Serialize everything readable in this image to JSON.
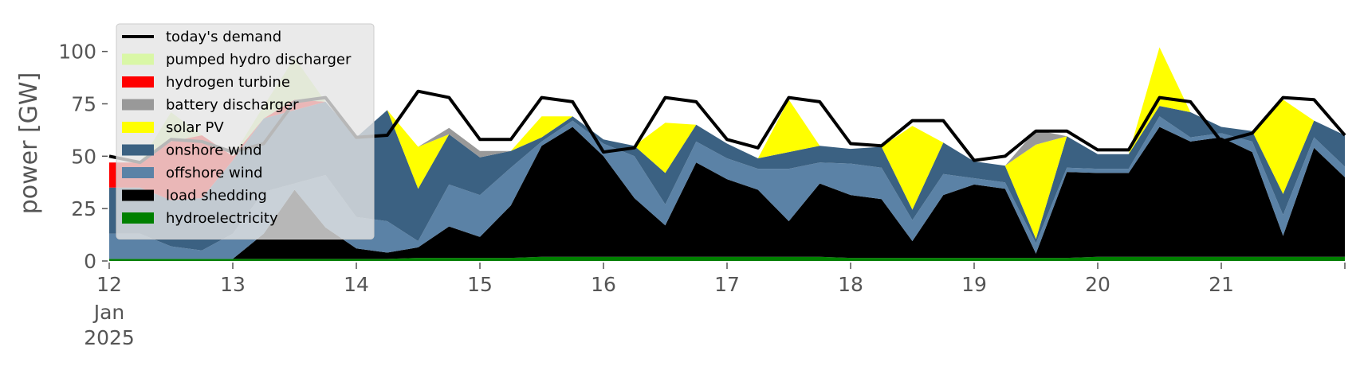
{
  "chart_data": {
    "type": "area",
    "stacked": true,
    "ylabel": "power [GW]",
    "xlabel": "",
    "ylim": [
      0,
      120
    ],
    "yticks": [
      0,
      25,
      50,
      75,
      100
    ],
    "xlim": [
      "2025-01-12T00:00",
      "2025-01-22T00:00"
    ],
    "xtick_labels": [
      "12",
      "13",
      "14",
      "15",
      "16",
      "17",
      "18",
      "19",
      "20",
      "21"
    ],
    "x_date_label": [
      "Jan",
      "2025"
    ],
    "legend_position": "upper-left",
    "legend": [
      {
        "name": "today's demand",
        "kind": "line",
        "color": "#000000"
      },
      {
        "name": "pumped hydro discharger",
        "kind": "patch",
        "color": "#d9f7a6"
      },
      {
        "name": "hydrogen turbine",
        "kind": "patch",
        "color": "#ff0000"
      },
      {
        "name": "battery discharger",
        "kind": "patch",
        "color": "#999999"
      },
      {
        "name": "solar PV",
        "kind": "patch",
        "color": "#ffff00"
      },
      {
        "name": "onshore wind",
        "kind": "patch",
        "color": "#3b6182"
      },
      {
        "name": "offshore wind",
        "kind": "patch",
        "color": "#5b82a6"
      },
      {
        "name": "load shedding",
        "kind": "patch",
        "color": "#000000"
      },
      {
        "name": "hydroelectricity",
        "kind": "patch",
        "color": "#008000"
      }
    ],
    "x": [
      "2025-01-12T00:00",
      "2025-01-12T06:00",
      "2025-01-12T12:00",
      "2025-01-12T18:00",
      "2025-01-13T00:00",
      "2025-01-13T06:00",
      "2025-01-13T12:00",
      "2025-01-13T18:00",
      "2025-01-14T00:00",
      "2025-01-14T06:00",
      "2025-01-14T12:00",
      "2025-01-14T18:00",
      "2025-01-15T00:00",
      "2025-01-15T06:00",
      "2025-01-15T12:00",
      "2025-01-15T18:00",
      "2025-01-16T00:00",
      "2025-01-16T06:00",
      "2025-01-16T12:00",
      "2025-01-16T18:00",
      "2025-01-17T00:00",
      "2025-01-17T06:00",
      "2025-01-17T12:00",
      "2025-01-17T18:00",
      "2025-01-18T00:00",
      "2025-01-18T06:00",
      "2025-01-18T12:00",
      "2025-01-18T18:00",
      "2025-01-19T00:00",
      "2025-01-19T06:00",
      "2025-01-19T12:00",
      "2025-01-19T18:00",
      "2025-01-20T00:00",
      "2025-01-20T06:00",
      "2025-01-20T12:00",
      "2025-01-20T18:00",
      "2025-01-21T00:00",
      "2025-01-21T06:00",
      "2025-01-21T12:00",
      "2025-01-21T18:00",
      "2025-01-22T00:00"
    ],
    "series": [
      {
        "name": "hydroelectricity",
        "color": "#008000",
        "values": [
          1,
          1,
          1,
          1,
          1,
          1,
          1,
          1,
          1,
          1,
          1.5,
          1.5,
          1.5,
          1.5,
          2,
          2,
          2,
          2,
          2,
          2,
          2,
          2,
          2,
          2,
          1.5,
          1.5,
          1.5,
          1.5,
          1.5,
          1.5,
          1.5,
          1.5,
          2,
          2,
          2,
          2,
          2,
          2,
          2,
          2,
          2
        ]
      },
      {
        "name": "load shedding",
        "color": "#000000",
        "values": [
          0,
          0,
          0,
          0,
          0,
          12,
          33,
          15,
          5,
          3,
          5,
          15,
          10,
          25,
          53,
          62,
          48,
          28,
          15,
          45,
          37,
          32,
          17,
          35,
          30,
          28,
          8,
          30,
          35,
          33,
          2,
          41,
          40,
          40,
          62,
          55,
          57,
          50,
          10,
          52,
          38
        ]
      },
      {
        "name": "offshore wind",
        "color": "#5b82a6",
        "values": [
          12,
          12,
          6,
          4,
          12,
          20,
          3,
          25,
          15,
          15,
          3,
          20,
          20,
          18,
          2,
          3,
          6,
          20,
          10,
          10,
          10,
          10,
          25,
          10,
          15,
          15,
          10,
          10,
          3,
          3,
          5,
          2,
          2,
          2,
          5,
          2,
          2,
          5,
          10,
          5,
          5
        ]
      },
      {
        "name": "onshore wind",
        "color": "#3b6182",
        "values": [
          22,
          22,
          22,
          25,
          35,
          35,
          35,
          35,
          38,
          53,
          25,
          24,
          18,
          8,
          2,
          2,
          2,
          5,
          15,
          8,
          7,
          5,
          8,
          8,
          7,
          10,
          5,
          15,
          8,
          8,
          2,
          15,
          7,
          7,
          5,
          12,
          3,
          5,
          10,
          8,
          15
        ]
      },
      {
        "name": "solar PV",
        "color": "#ffff00",
        "values": [
          0,
          0,
          0,
          0,
          0,
          0,
          0,
          0,
          0,
          0,
          20,
          0,
          0,
          0,
          10,
          0,
          0,
          0,
          24,
          0,
          0,
          0,
          25,
          0,
          0,
          0,
          40,
          0,
          0,
          0,
          45,
          0,
          0,
          0,
          28,
          0,
          0,
          0,
          45,
          0,
          0
        ]
      },
      {
        "name": "battery discharger",
        "color": "#999999",
        "values": [
          0,
          0,
          0,
          0,
          0,
          0,
          0,
          0,
          0,
          0,
          0,
          3,
          3,
          0,
          0,
          0,
          0,
          0,
          0,
          0,
          0,
          0,
          0,
          0,
          0,
          0,
          0,
          0,
          0,
          0,
          7,
          0,
          0,
          0,
          0,
          0,
          0,
          0,
          0,
          0,
          0
        ]
      },
      {
        "name": "hydrogen turbine",
        "color": "#ff0000",
        "values": [
          12,
          12,
          28,
          30,
          2,
          0,
          5,
          0,
          0,
          0,
          0,
          0,
          0,
          0,
          0,
          0,
          0,
          0,
          0,
          0,
          0,
          0,
          0,
          0,
          0,
          0,
          0,
          0,
          0,
          0,
          0,
          0,
          0,
          0,
          0,
          0,
          0,
          0,
          0,
          0,
          0
        ]
      },
      {
        "name": "pumped hydro discharger",
        "color": "#d9f7a6",
        "values": [
          0,
          0,
          14,
          0,
          0,
          6,
          20,
          0,
          0,
          0,
          0,
          0,
          0,
          0,
          0,
          0,
          0,
          0,
          0,
          0,
          0,
          0,
          0,
          0,
          0,
          0,
          0,
          0,
          0,
          0,
          0,
          0,
          0,
          0,
          0,
          0,
          0,
          0,
          0,
          0,
          0
        ]
      }
    ],
    "demand": {
      "name": "today's demand",
      "color": "#000000",
      "values": [
        50,
        47,
        58,
        57,
        52,
        56,
        76,
        78,
        59,
        60,
        81,
        78,
        58,
        58,
        78,
        76,
        52,
        54,
        78,
        76,
        58,
        54,
        78,
        76,
        56,
        55,
        67,
        67,
        48,
        50,
        62,
        62,
        53,
        53,
        78,
        76,
        57,
        61,
        78,
        77,
        60
      ]
    }
  }
}
